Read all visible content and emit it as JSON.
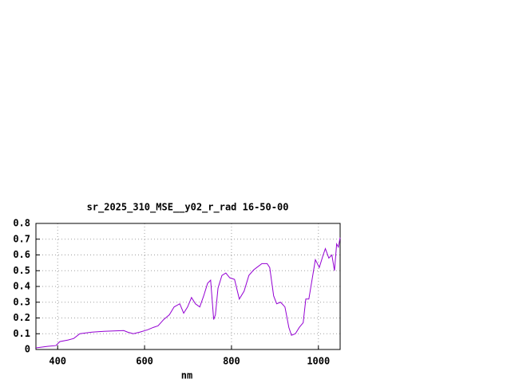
{
  "chart_data": {
    "type": "line",
    "title": "sr_2025_310_MSE__y02_r_rad 16-50-00",
    "x_label": "nm",
    "x": [
      350,
      378,
      396,
      405,
      424,
      437,
      451,
      479,
      506,
      552,
      561,
      574,
      589,
      607,
      620,
      631,
      644,
      657,
      668,
      681,
      690,
      699,
      708,
      717,
      727,
      736,
      745,
      752,
      759,
      763,
      769,
      778,
      787,
      796,
      807,
      818,
      829,
      840,
      851,
      858,
      870,
      882,
      888,
      897,
      904,
      913,
      923,
      932,
      938,
      947,
      956,
      965,
      971,
      978,
      987,
      993,
      1002,
      1011,
      1016,
      1024,
      1031,
      1037,
      1042,
      1046,
      1050
    ],
    "series": [
      {
        "color": "#9400d3",
        "values": [
          0.01,
          0.02,
          0.025,
          0.05,
          0.06,
          0.07,
          0.1,
          0.11,
          0.115,
          0.12,
          0.11,
          0.1,
          0.11,
          0.125,
          0.14,
          0.15,
          0.19,
          0.22,
          0.27,
          0.29,
          0.23,
          0.27,
          0.33,
          0.29,
          0.27,
          0.34,
          0.42,
          0.44,
          0.19,
          0.22,
          0.39,
          0.47,
          0.485,
          0.455,
          0.445,
          0.32,
          0.37,
          0.47,
          0.505,
          0.52,
          0.545,
          0.545,
          0.52,
          0.34,
          0.29,
          0.3,
          0.27,
          0.14,
          0.09,
          0.1,
          0.14,
          0.17,
          0.32,
          0.32,
          0.47,
          0.57,
          0.52,
          0.6,
          0.64,
          0.58,
          0.6,
          0.5,
          0.67,
          0.65,
          0.71
        ]
      }
    ],
    "xlim": [
      350,
      1050
    ],
    "xticks": [
      400,
      600,
      800,
      1000
    ],
    "ylim": [
      0,
      0.8
    ],
    "yticks": [
      0,
      0.1,
      0.2,
      0.3,
      0.4,
      0.5,
      0.6,
      0.7,
      0.8
    ],
    "grid": true
  }
}
